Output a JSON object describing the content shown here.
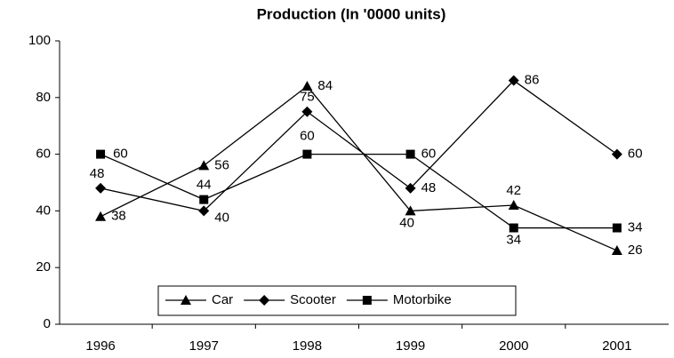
{
  "chart_data": {
    "type": "line",
    "title": "Production (In '0000 units)",
    "categories": [
      "1996",
      "1997",
      "1998",
      "1999",
      "2000",
      "2001"
    ],
    "series": [
      {
        "name": "Car",
        "color": "#000000",
        "marker": "triangle",
        "values": [
          38,
          56,
          84,
          40,
          42,
          26
        ]
      },
      {
        "name": "Scooter",
        "color": "#000000",
        "marker": "diamond",
        "values": [
          48,
          40,
          75,
          48,
          86,
          60
        ]
      },
      {
        "name": "Motorbike",
        "color": "#000000",
        "marker": "square",
        "values": [
          60,
          44,
          60,
          60,
          34,
          34
        ]
      }
    ],
    "ylim": [
      0,
      100
    ],
    "yticks": [
      0,
      20,
      40,
      60,
      80,
      100
    ],
    "grid": false,
    "legend": "bottom"
  }
}
